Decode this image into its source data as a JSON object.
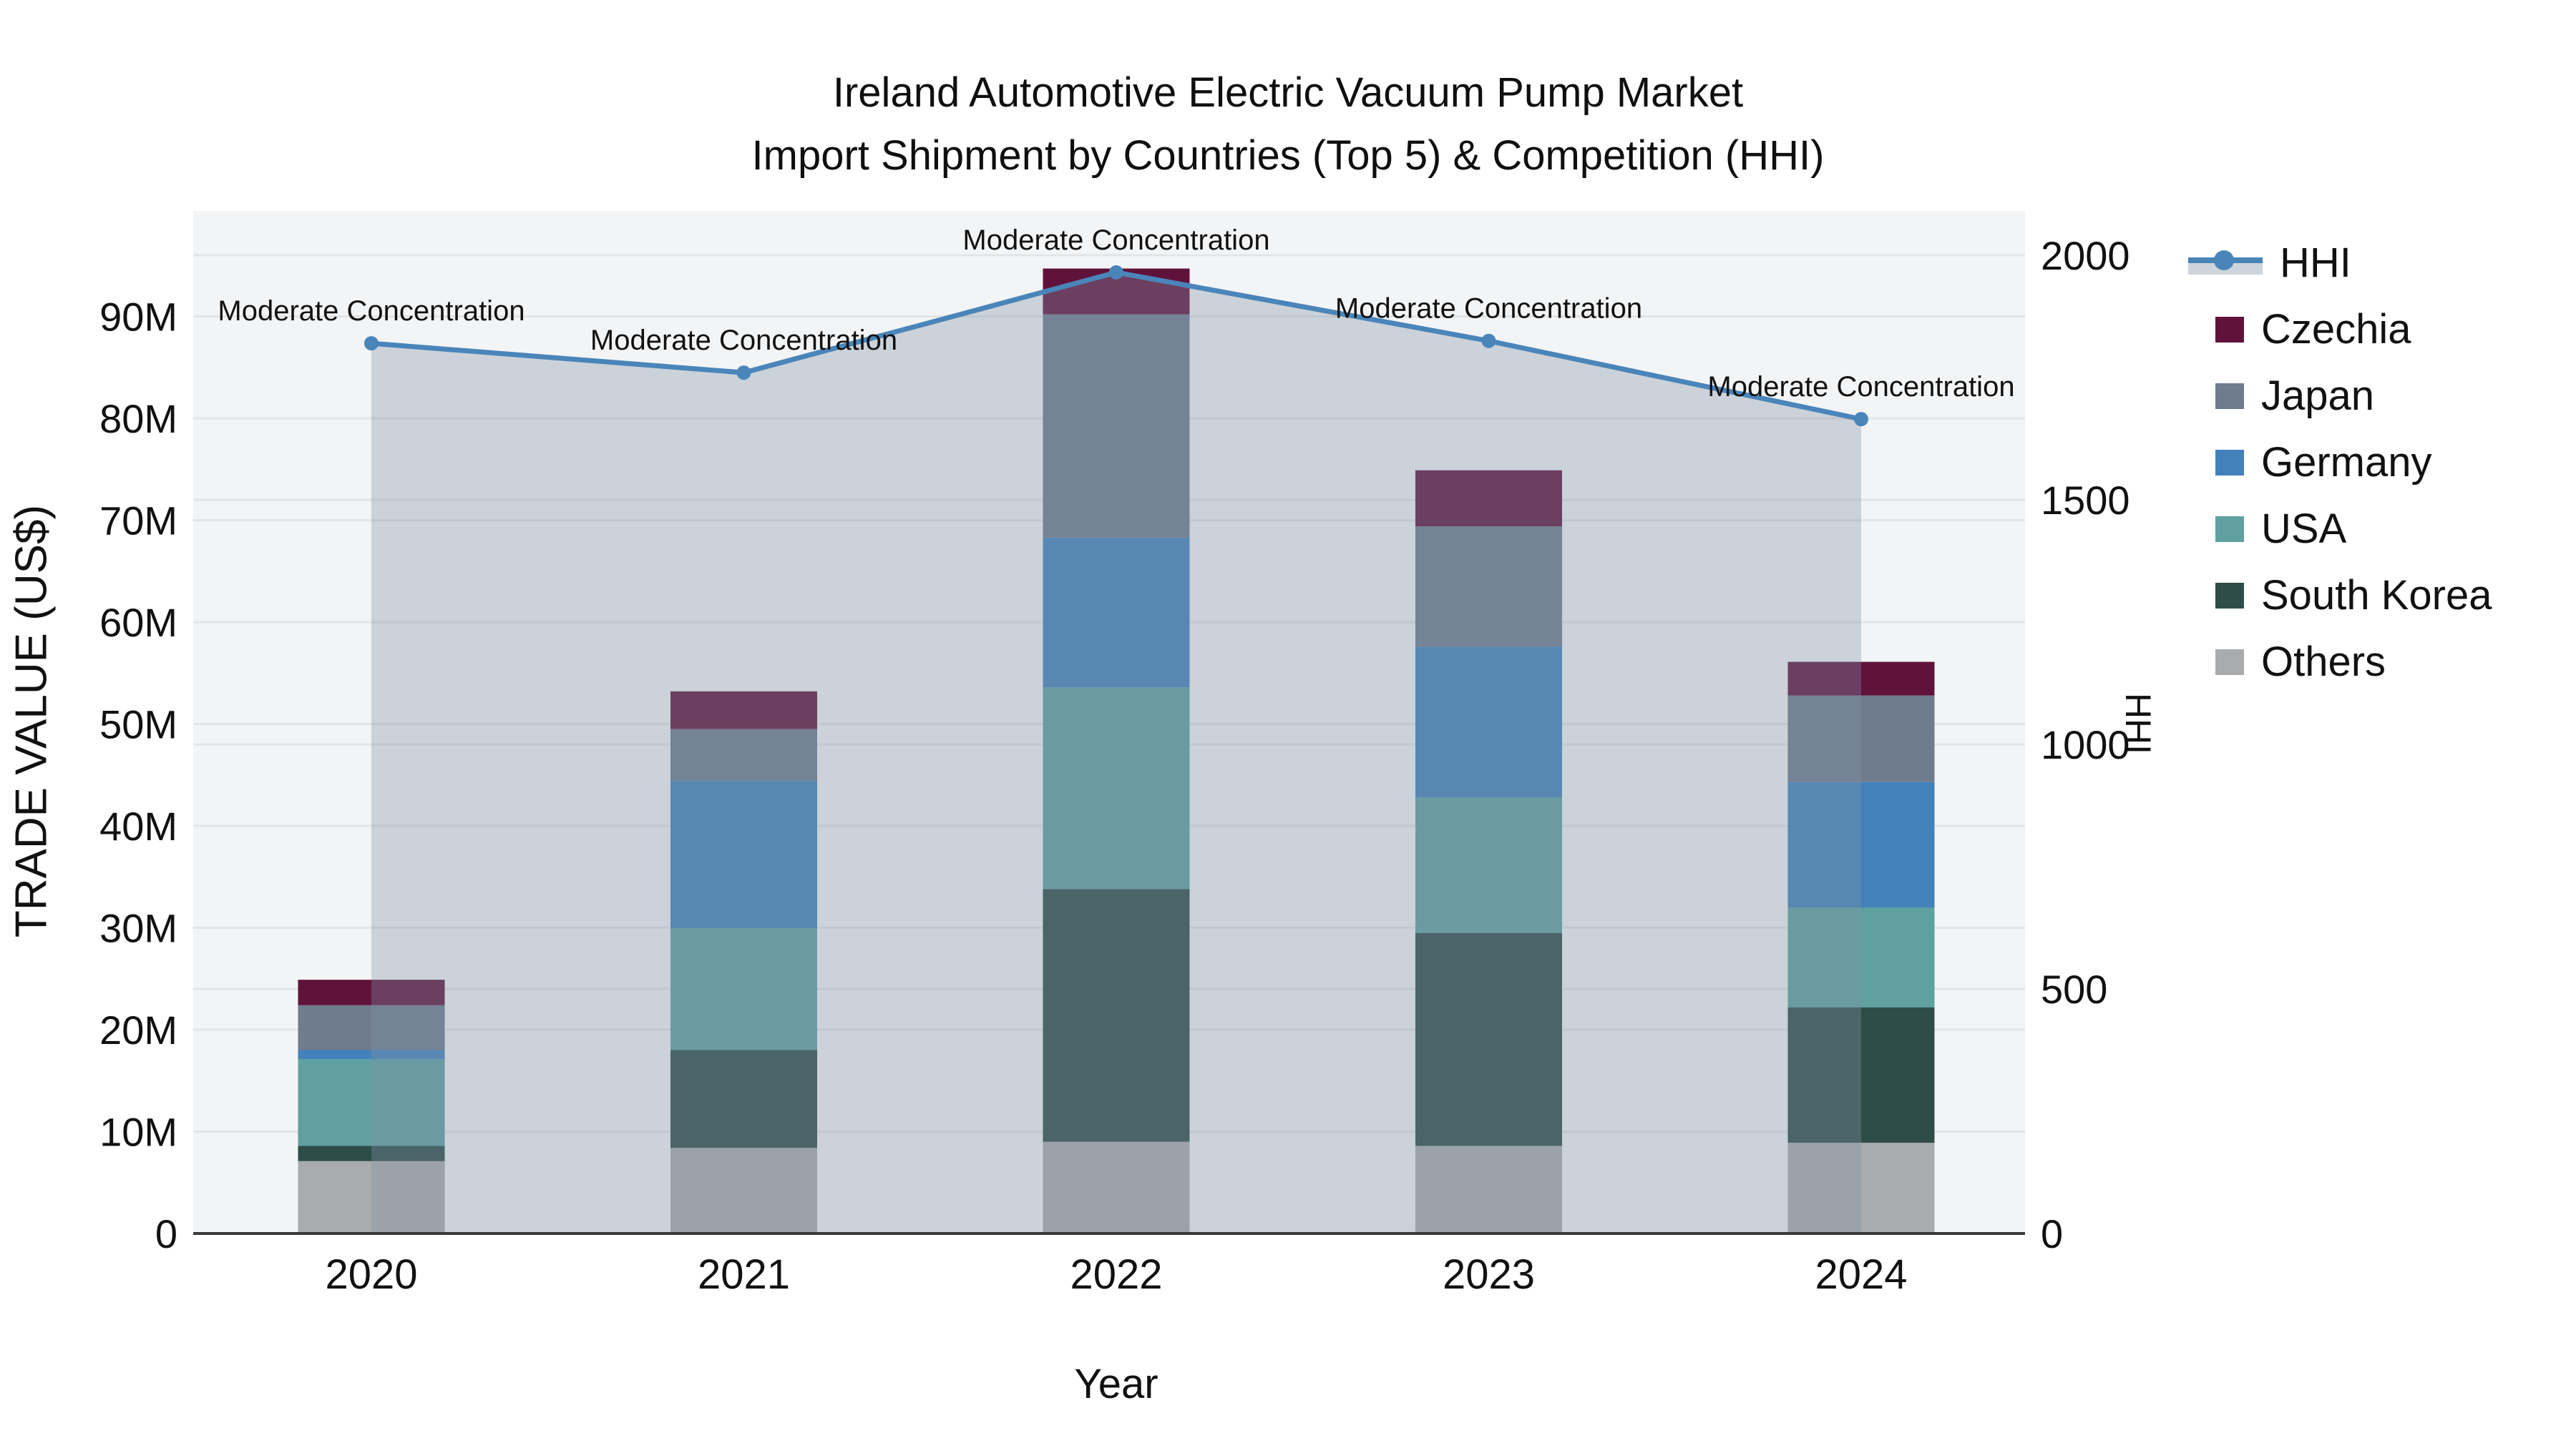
{
  "title": {
    "line1": "Ireland Automotive Electric Vacuum Pump Market",
    "line2": "Import Shipment by Countries (Top 5) & Competition (HHI)"
  },
  "axes": {
    "y_left_title": "TRADE VALUE (US$)",
    "y_right_title": "HHI",
    "x_title": "Year"
  },
  "legend": [
    {
      "label": "HHI",
      "type": "line",
      "color": "#4a85ba"
    },
    {
      "label": "Czechia",
      "type": "square",
      "color": "#60133a"
    },
    {
      "label": "Japan",
      "type": "square",
      "color": "#6e7c8d"
    },
    {
      "label": "Germany",
      "type": "square",
      "color": "#4381ba"
    },
    {
      "label": "USA",
      "type": "square",
      "color": "#5fa0a1"
    },
    {
      "label": "South Korea",
      "type": "square",
      "color": "#2e4c48"
    },
    {
      "label": "Others",
      "type": "square",
      "color": "#a9abad"
    }
  ],
  "colors": {
    "plot_background": "#f3f4f5",
    "gridline": "#e3e4e5",
    "axis_line": "#3a3a3a",
    "hhi_line": "#4a85ba",
    "hhi_area_fill": "rgba(128,146,166,0.35)",
    "text": "#111111"
  },
  "chart_data": {
    "type": "combo-stacked-bar-and-line",
    "title": "Ireland Automotive Electric Vacuum Pump Market Import Shipment by Countries (Top 5) & Competition (HHI)",
    "categories": [
      "2020",
      "2021",
      "2022",
      "2023",
      "2024"
    ],
    "bar_value_unit": "million US$",
    "stack_order": "bottom-to-top",
    "bar_series": [
      {
        "name": "Others",
        "color": "#a9abad",
        "values": [
          7.1,
          8.4,
          9.0,
          8.6,
          8.9
        ]
      },
      {
        "name": "South Korea",
        "color": "#2e4c48",
        "values": [
          1.5,
          9.6,
          24.8,
          20.9,
          13.3
        ]
      },
      {
        "name": "USA",
        "color": "#5fa0a1",
        "values": [
          8.5,
          12.0,
          19.8,
          13.3,
          9.8
        ]
      },
      {
        "name": "Germany",
        "color": "#4381ba",
        "values": [
          0.9,
          14.4,
          14.7,
          14.8,
          12.3
        ]
      },
      {
        "name": "Japan",
        "color": "#6e7c8d",
        "values": [
          4.4,
          5.1,
          21.9,
          11.8,
          8.5
        ]
      },
      {
        "name": "Czechia",
        "color": "#60133a",
        "values": [
          2.5,
          3.7,
          4.5,
          5.5,
          3.3
        ]
      }
    ],
    "bar_totals": [
      24.9,
      53.2,
      94.7,
      74.9,
      56.1
    ],
    "line_series": {
      "name": "HHI",
      "axis": "right",
      "color": "#4a85ba",
      "fill": "tozeroy",
      "fill_color": "rgba(128,146,166,0.35)",
      "values": [
        1820,
        1760,
        1965,
        1825,
        1665
      ]
    },
    "annotations": [
      {
        "category": "2020",
        "text": "Moderate Concentration"
      },
      {
        "category": "2021",
        "text": "Moderate Concentration"
      },
      {
        "category": "2022",
        "text": "Moderate Concentration"
      },
      {
        "category": "2023",
        "text": "Moderate Concentration"
      },
      {
        "category": "2024",
        "text": "Moderate Concentration"
      }
    ],
    "xlabel": "Year",
    "ylabel_left": "TRADE VALUE (US$)",
    "ylabel_right": "HHI",
    "y_left": {
      "range_millions": [
        0,
        100
      ],
      "ticks": [
        0,
        10,
        20,
        30,
        40,
        50,
        60,
        70,
        80,
        90
      ],
      "tick_labels": [
        "0",
        "10M",
        "20M",
        "30M",
        "40M",
        "50M",
        "60M",
        "70M",
        "80M",
        "90M"
      ]
    },
    "y_right": {
      "range": [
        0,
        2090
      ],
      "ticks": [
        0,
        500,
        1000,
        1500,
        2000
      ],
      "tick_labels": [
        "0",
        "500",
        "1000",
        "1500",
        "2000"
      ]
    },
    "grid": true,
    "legend_position": "right"
  }
}
